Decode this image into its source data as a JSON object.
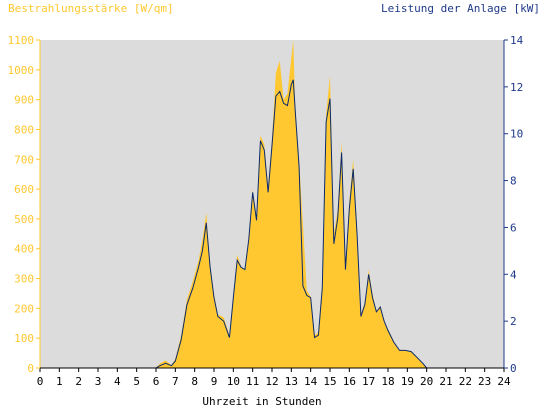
{
  "chart_data": {
    "type": "area",
    "ylabel_left": "Bestrahlungsstärke [W/qm]",
    "ylabel_right": "Leistung der Anlage [kW]",
    "xlabel": "Uhrzeit in Stunden",
    "xlim": [
      0,
      24
    ],
    "ylim_left": [
      0,
      1100
    ],
    "ylim_right": [
      0,
      14
    ],
    "grid": false,
    "x_ticks": [
      "0",
      "1",
      "2",
      "3",
      "4",
      "5",
      "6",
      "7",
      "8",
      "9",
      "10",
      "11",
      "12",
      "13",
      "14",
      "15",
      "16",
      "17",
      "18",
      "19",
      "20",
      "21",
      "22",
      "23",
      "24"
    ],
    "y_left_ticks": [
      "0",
      "100",
      "200",
      "300",
      "400",
      "500",
      "600",
      "700",
      "800",
      "900",
      "1000",
      "1100"
    ],
    "y_right_ticks": [
      "0",
      "2",
      "4",
      "6",
      "8",
      "10",
      "12",
      "14"
    ],
    "colors": {
      "irradiance": "#ffc830",
      "power": "#0a2a6e",
      "plot_bg": "#dcdcdc",
      "left_axis": "#ffc830",
      "right_axis": "#1f3a8a"
    },
    "series": [
      {
        "name": "Bestrahlungsstärke [W/qm]",
        "axis": "left",
        "x": [
          0,
          6.0,
          6.2,
          6.5,
          6.8,
          7.0,
          7.3,
          7.6,
          7.9,
          8.2,
          8.4,
          8.6,
          8.8,
          9.0,
          9.2,
          9.5,
          9.8,
          10.0,
          10.2,
          10.4,
          10.6,
          10.8,
          11.0,
          11.2,
          11.4,
          11.6,
          11.8,
          12.0,
          12.2,
          12.4,
          12.6,
          12.8,
          13.0,
          13.1,
          13.2,
          13.4,
          13.6,
          13.8,
          14.0,
          14.2,
          14.4,
          14.6,
          14.8,
          15.0,
          15.2,
          15.4,
          15.6,
          15.8,
          16.0,
          16.2,
          16.4,
          16.6,
          16.8,
          17.0,
          17.2,
          17.4,
          17.6,
          17.8,
          18.0,
          18.3,
          18.6,
          18.9,
          19.2,
          19.5,
          19.8,
          20.0,
          24
        ],
        "values": [
          0,
          0,
          15,
          25,
          10,
          30,
          110,
          230,
          290,
          360,
          430,
          520,
          350,
          250,
          180,
          170,
          110,
          250,
          380,
          340,
          330,
          430,
          600,
          500,
          780,
          750,
          610,
          770,
          990,
          1030,
          900,
          920,
          1040,
          1100,
          880,
          700,
          480,
          260,
          240,
          110,
          120,
          290,
          850,
          980,
          450,
          530,
          760,
          350,
          560,
          700,
          470,
          180,
          220,
          330,
          250,
          190,
          210,
          160,
          130,
          90,
          60,
          60,
          55,
          35,
          15,
          0,
          0
        ]
      },
      {
        "name": "Leistung der Anlage [kW]",
        "axis": "right",
        "x": [
          0,
          6.0,
          6.2,
          6.5,
          6.8,
          7.0,
          7.3,
          7.6,
          7.9,
          8.2,
          8.4,
          8.6,
          8.8,
          9.0,
          9.2,
          9.5,
          9.8,
          10.0,
          10.2,
          10.4,
          10.6,
          10.8,
          11.0,
          11.2,
          11.4,
          11.6,
          11.8,
          12.0,
          12.2,
          12.4,
          12.6,
          12.8,
          13.0,
          13.1,
          13.2,
          13.4,
          13.6,
          13.8,
          14.0,
          14.2,
          14.4,
          14.6,
          14.8,
          15.0,
          15.2,
          15.4,
          15.6,
          15.8,
          16.0,
          16.2,
          16.4,
          16.6,
          16.8,
          17.0,
          17.2,
          17.4,
          17.6,
          17.8,
          18.0,
          18.3,
          18.6,
          18.9,
          19.2,
          19.5,
          19.8,
          20.0,
          24
        ],
        "values": [
          0,
          0,
          0.1,
          0.2,
          0.1,
          0.3,
          1.2,
          2.7,
          3.4,
          4.3,
          5.0,
          6.2,
          4.3,
          3.0,
          2.2,
          2.0,
          1.3,
          3.0,
          4.6,
          4.3,
          4.2,
          5.5,
          7.5,
          6.3,
          9.7,
          9.3,
          7.5,
          9.5,
          11.6,
          11.8,
          11.3,
          11.2,
          12.1,
          12.3,
          11.0,
          8.6,
          3.5,
          3.1,
          3.0,
          1.3,
          1.4,
          3.4,
          10.5,
          11.5,
          5.3,
          6.4,
          9.2,
          4.2,
          6.8,
          8.5,
          5.7,
          2.2,
          2.7,
          4.0,
          3.0,
          2.4,
          2.6,
          2.0,
          1.6,
          1.1,
          0.75,
          0.75,
          0.7,
          0.45,
          0.2,
          0,
          0
        ]
      }
    ]
  }
}
